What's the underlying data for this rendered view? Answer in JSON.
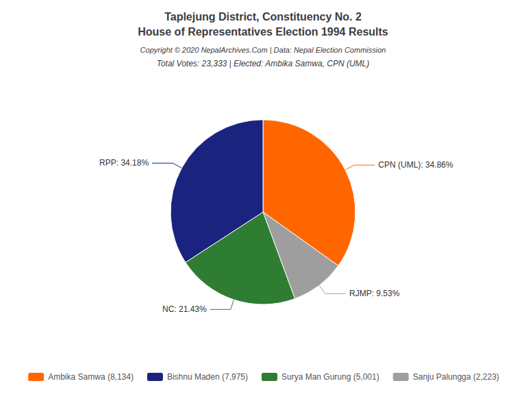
{
  "chart_data": {
    "type": "pie",
    "title": "Taplejung District, Constituency No. 2\nHouse of Representatives Election 1994 Results",
    "annotations": [
      "Copyright © 2020 NepalArchives.Com | Data: Nepal Election Commission"
    ],
    "subtitle": "Total Votes: 23,333 | Elected: Ambika Samwa, CPN (UML)",
    "categories": [
      "Ambika Samwa (8,134)",
      "Sanju Palungga (2,223)",
      "Surya Man Gurung (5,001)",
      "Bishnu Maden (7,975)"
    ],
    "values": [
      34.86,
      9.53,
      21.43,
      34.18
    ],
    "value_labels": [
      "CPN (UML): 34.86%",
      "RJMP: 9.53%",
      "NC: 21.43%",
      "RPP: 34.18%"
    ],
    "colors": [
      "#FF6600",
      "#9E9E9E",
      "#2E7D32",
      "#1A237E"
    ],
    "data_labels": true,
    "legend": "bottom",
    "legend_entries": [
      "Ambika Samwa (8,134)",
      "Bishnu Maden (7,975)",
      "Surya Man Gurung (5,001)",
      "Sanju Palungga (2,223)"
    ]
  }
}
